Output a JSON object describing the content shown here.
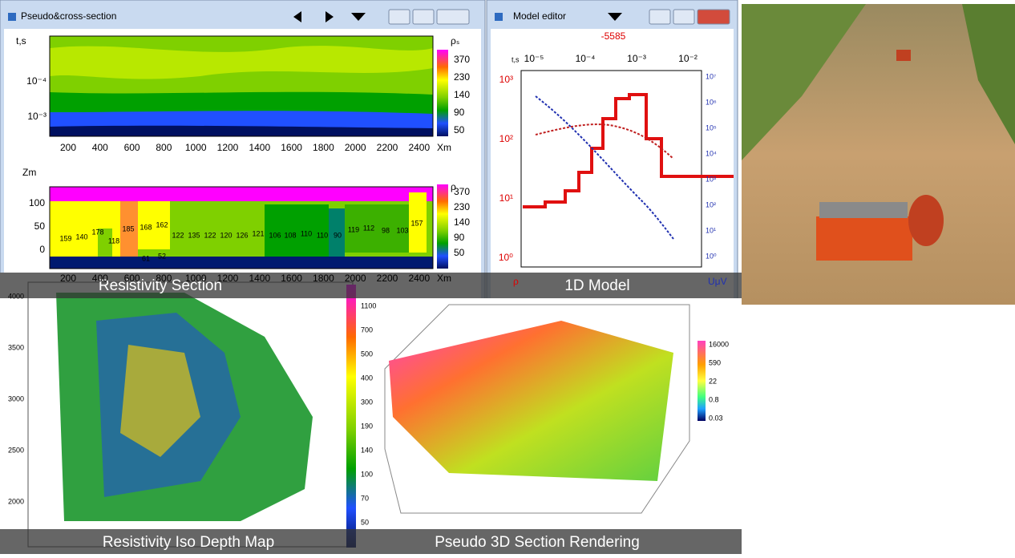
{
  "pseudo_window": {
    "title": "Pseudo&cross-section",
    "top_section": {
      "y_label": "t,s",
      "y_ticks": [
        "10⁻⁴",
        "10⁻³"
      ],
      "x_ticks": [
        "200",
        "400",
        "600",
        "800",
        "1000",
        "1200",
        "1400",
        "1600",
        "1800",
        "2000",
        "2200",
        "2400"
      ],
      "x_unit": "Xm",
      "colorbar_label": "ρₛ",
      "colorbar_ticks": [
        "370",
        "230",
        "140",
        "90",
        "50"
      ]
    },
    "bottom_section": {
      "y_label": "Zm",
      "y_ticks": [
        "100",
        "50",
        "0"
      ],
      "x_ticks": [
        "200",
        "400",
        "600",
        "800",
        "1000",
        "1200",
        "1400",
        "1600",
        "1800",
        "2000",
        "2200",
        "2400"
      ],
      "x_unit": "Xm",
      "colorbar_label": "ρ",
      "colorbar_ticks": [
        "370",
        "230",
        "140",
        "90",
        "50"
      ],
      "layer_labels": [
        159,
        140,
        178,
        118,
        185,
        168,
        162,
        61,
        52,
        122,
        135,
        122,
        120,
        126,
        121,
        106,
        108,
        110,
        110,
        90,
        119,
        112,
        98,
        103,
        157
      ]
    }
  },
  "model_editor": {
    "title": "Model editor",
    "station": "-5585",
    "x_label": "t,s",
    "x_ticks": [
      "10⁻⁵",
      "10⁻⁴",
      "10⁻³",
      "10⁻²"
    ],
    "left_ticks": [
      "10³",
      "10²",
      "10¹",
      "10⁰"
    ],
    "right_ticks": [
      "10⁷",
      "10⁶",
      "10⁵",
      "10⁴",
      "10³",
      "10²",
      "10¹",
      "10⁰"
    ],
    "left_unit": "ρ",
    "right_unit": "UμV"
  },
  "iso_map": {
    "y_ticks": [
      "4000",
      "3500",
      "3000",
      "2500",
      "2000"
    ],
    "colorbar_ticks": [
      "1100",
      "700",
      "500",
      "400",
      "300",
      "190",
      "140",
      "100",
      "70",
      "50"
    ]
  },
  "render_3d": {
    "colorbar_ticks": [
      "16000",
      "590",
      "22",
      "0.8",
      "0.03"
    ]
  },
  "captions": [
    "Resistivity Section",
    "1D Model",
    "Resistivity Iso Depth Map",
    "Pseudo 3D Section Rendering"
  ]
}
